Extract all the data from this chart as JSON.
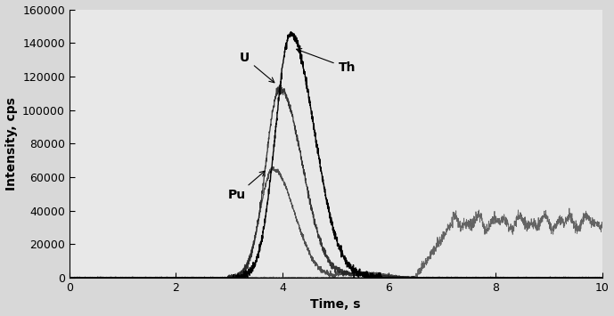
{
  "xlabel": "Time, s",
  "ylabel": "Intensity, cps",
  "xlim": [
    0,
    10
  ],
  "ylim": [
    0,
    160000
  ],
  "xticks": [
    0,
    2,
    4,
    6,
    8,
    10
  ],
  "yticks": [
    0,
    20000,
    40000,
    60000,
    80000,
    100000,
    120000,
    140000,
    160000
  ],
  "background_color": "#d8d8d8",
  "plot_bg_color": "#e8e8e8",
  "line_color": "#111111",
  "label_Th": "Th",
  "label_U": "U",
  "label_Pu": "Pu",
  "Th_peak_x": 4.15,
  "Th_peak_y": 145000,
  "U_peak_x": 3.95,
  "U_peak_y": 113000,
  "Pu_peak_x": 3.82,
  "Pu_peak_y": 65000,
  "noise_rise_start": 7.0,
  "noise_plateau": 33000,
  "noise_amplitude": 4000,
  "noise_freq": 15
}
